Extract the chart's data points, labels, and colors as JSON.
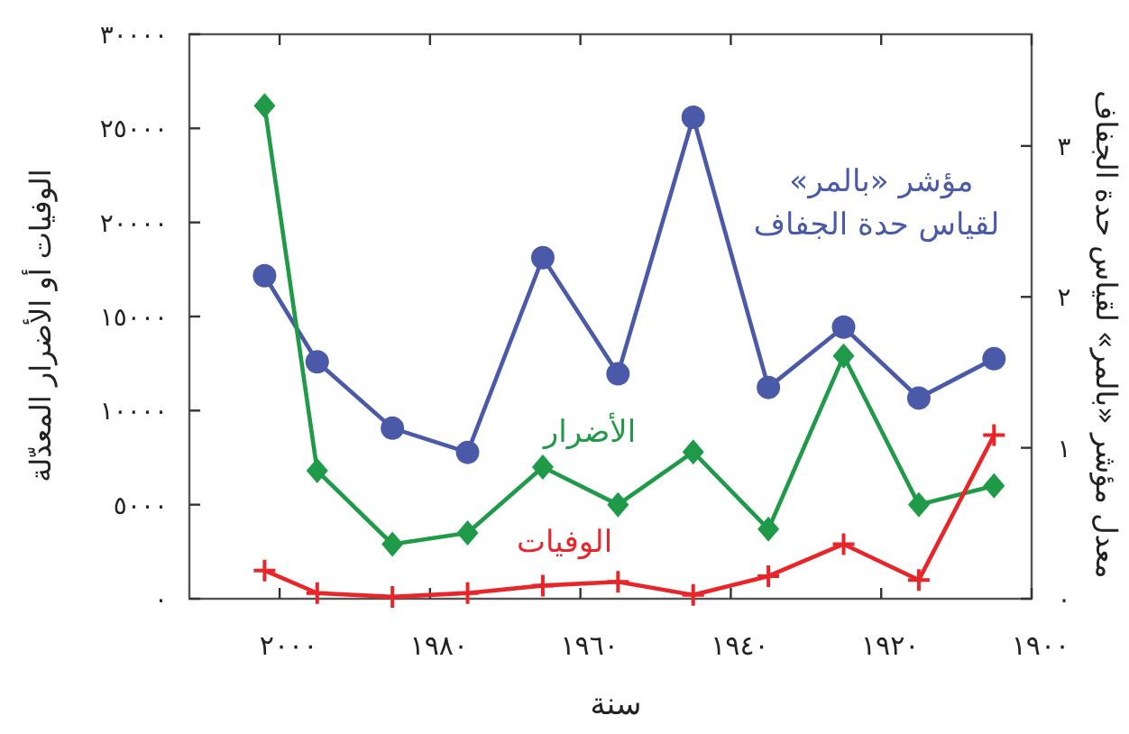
{
  "chart_data": {
    "type": "line",
    "xlabel": "سنة",
    "ylabel": "الوفيات أو الأضرار المعدّلة",
    "y2label": "معدل مؤشر «بالمر» لقياس حدة الجفاف",
    "x": [
      2002,
      1995,
      1985,
      1975,
      1965,
      1955,
      1945,
      1935,
      1925,
      1915,
      1905
    ],
    "xlim": [
      2012,
      1900
    ],
    "xticks": [
      {
        "value": 2000,
        "label": "٢٠٠٠"
      },
      {
        "value": 1980,
        "label": "١٩٨٠"
      },
      {
        "value": 1960,
        "label": "١٩٦٠"
      },
      {
        "value": 1940,
        "label": "١٩٤٠"
      },
      {
        "value": 1920,
        "label": "١٩٢٠"
      },
      {
        "value": 1900,
        "label": "١٩٠٠"
      }
    ],
    "ylim": [
      0,
      30000
    ],
    "yticks": [
      {
        "value": 0,
        "label": "٠"
      },
      {
        "value": 5000,
        "label": "٥٠٠٠"
      },
      {
        "value": 10000,
        "label": "١٠٠٠٠"
      },
      {
        "value": 15000,
        "label": "١٥٠٠٠"
      },
      {
        "value": 20000,
        "label": "٢٠٠٠٠"
      },
      {
        "value": 25000,
        "label": "٢٥٠٠٠"
      },
      {
        "value": 30000,
        "label": "٣٠٠٠٠"
      }
    ],
    "y2lim": [
      0,
      3.74
    ],
    "y2ticks": [
      {
        "value": 0,
        "label": "٠"
      },
      {
        "value": 1,
        "label": "١"
      },
      {
        "value": 2,
        "label": "٢"
      },
      {
        "value": 3,
        "label": "٣"
      }
    ],
    "line_style": "solid",
    "series": [
      {
        "name": "مؤشر «بالمر» لقياس حدة الجفاف",
        "color": "#4a5aa8",
        "marker": "circle",
        "axis": "y2",
        "values": [
          2.14,
          1.57,
          1.13,
          0.97,
          2.26,
          1.49,
          3.19,
          1.4,
          1.8,
          1.33,
          1.59
        ]
      },
      {
        "name": "الأضرار",
        "color": "#1f9a48",
        "marker": "diamond",
        "values": [
          26200,
          6800,
          2900,
          3500,
          7000,
          5000,
          7800,
          3700,
          12900,
          5000,
          6000
        ]
      },
      {
        "name": "الوفيات",
        "color": "#e8262a",
        "marker": "cross",
        "values": [
          1500,
          300,
          100,
          300,
          700,
          900,
          200,
          1200,
          2900,
          1000,
          8700
        ]
      }
    ]
  }
}
